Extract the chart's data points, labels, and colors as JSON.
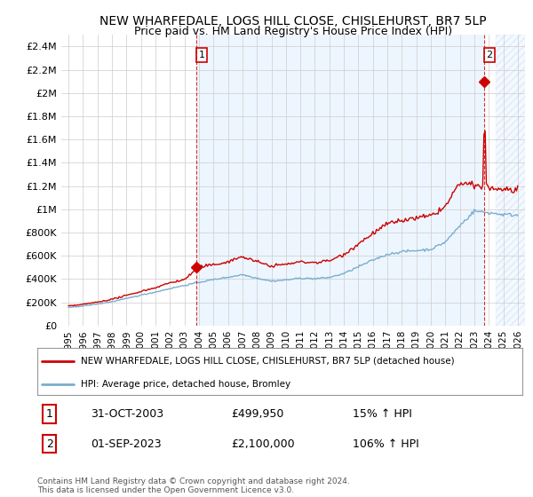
{
  "title": "NEW WHARFEDALE, LOGS HILL CLOSE, CHISLEHURST, BR7 5LP",
  "subtitle": "Price paid vs. HM Land Registry's House Price Index (HPI)",
  "title_fontsize": 10,
  "subtitle_fontsize": 9,
  "ylim": [
    0,
    2500000
  ],
  "yticks": [
    0,
    200000,
    400000,
    600000,
    800000,
    1000000,
    1200000,
    1400000,
    1600000,
    1800000,
    2000000,
    2200000,
    2400000
  ],
  "ytick_labels": [
    "£0",
    "£200K",
    "£400K",
    "£600K",
    "£800K",
    "£1M",
    "£1.2M",
    "£1.4M",
    "£1.6M",
    "£1.8M",
    "£2M",
    "£2.2M",
    "£2.4M"
  ],
  "xlabel_years": [
    1995,
    1996,
    1997,
    1998,
    1999,
    2000,
    2001,
    2002,
    2003,
    2004,
    2005,
    2006,
    2007,
    2008,
    2009,
    2010,
    2011,
    2012,
    2013,
    2014,
    2015,
    2016,
    2017,
    2018,
    2019,
    2020,
    2021,
    2022,
    2023,
    2024,
    2025,
    2026
  ],
  "xlim": [
    1994.5,
    2026.5
  ],
  "red_color": "#cc0000",
  "blue_color": "#7aadcf",
  "point1_x": 2003.83,
  "point1_y": 499950,
  "point2_x": 2023.67,
  "point2_y": 2100000,
  "legend_red_label": "NEW WHARFEDALE, LOGS HILL CLOSE, CHISLEHURST, BR7 5LP (detached house)",
  "legend_blue_label": "HPI: Average price, detached house, Bromley",
  "table_row1": [
    "1",
    "31-OCT-2003",
    "£499,950",
    "15% ↑ HPI"
  ],
  "table_row2": [
    "2",
    "01-SEP-2023",
    "£2,100,000",
    "106% ↑ HPI"
  ],
  "footer": "Contains HM Land Registry data © Crown copyright and database right 2024.\nThis data is licensed under the Open Government Licence v3.0.",
  "bg_color": "#ffffff",
  "grid_color": "#cccccc",
  "shade_color": "#ddeeff",
  "hatch_start": 2024.5
}
